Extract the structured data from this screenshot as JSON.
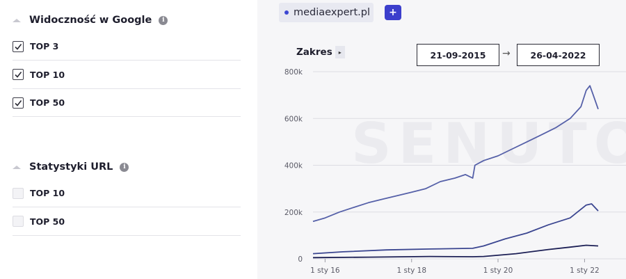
{
  "sidebar": {
    "google": {
      "title": "Widoczność w Google",
      "info": "i",
      "items": [
        {
          "label": "TOP 3",
          "checked": true
        },
        {
          "label": "TOP 10",
          "checked": true
        },
        {
          "label": "TOP 50",
          "checked": true
        }
      ]
    },
    "url": {
      "title": "Statystyki URL",
      "info": "i",
      "items": [
        {
          "label": "TOP 10",
          "checked": false
        },
        {
          "label": "TOP 50",
          "checked": false
        }
      ]
    }
  },
  "toolbar": {
    "domain": "mediaexpert.pl",
    "add_label": "+",
    "range_label": "Zakres",
    "range_caret": "▸",
    "date_from": "21-09-2015",
    "arrow": "→",
    "date_to": "26-04-2022",
    "watermark": "SENUTO"
  },
  "colors": {
    "accent": "#3c3fcc",
    "series_top50": "#5560a8",
    "series_top10": "#3a4590",
    "series_top3": "#1c1f55"
  },
  "chart_data": {
    "type": "line",
    "title": "",
    "xlabel": "",
    "ylabel": "",
    "ylim": [
      0,
      800000
    ],
    "xlim": [
      "2015-09-21",
      "2022-04-26"
    ],
    "yticks": [
      "0",
      "200k",
      "400k",
      "600k",
      "800k"
    ],
    "xticks": [
      {
        "label": "1 sty 16",
        "date": "2016-01-01"
      },
      {
        "label": "1 sty 18",
        "date": "2018-01-01"
      },
      {
        "label": "1 sty 20",
        "date": "2020-01-01"
      },
      {
        "label": "1 sty 22",
        "date": "2022-01-01"
      }
    ],
    "grid": true,
    "series": [
      {
        "key": "top50",
        "dates": [
          "2015-09-21",
          "2016-01-01",
          "2016-05-01",
          "2016-09-01",
          "2017-01-01",
          "2017-05-01",
          "2017-09-01",
          "2018-01-01",
          "2018-05-01",
          "2018-09-01",
          "2019-01-01",
          "2019-04-01",
          "2019-06-01",
          "2019-06-20",
          "2019-09-01",
          "2020-01-01",
          "2020-05-01",
          "2020-09-01",
          "2021-01-01",
          "2021-05-01",
          "2021-09-01",
          "2021-12-01",
          "2022-01-15",
          "2022-02-15",
          "2022-03-15",
          "2022-04-26"
        ],
        "values": [
          160000,
          175000,
          200000,
          220000,
          240000,
          255000,
          270000,
          285000,
          300000,
          330000,
          345000,
          360000,
          345000,
          400000,
          420000,
          440000,
          470000,
          500000,
          530000,
          560000,
          600000,
          650000,
          720000,
          740000,
          700000,
          640000
        ]
      },
      {
        "key": "top10",
        "dates": [
          "2015-09-21",
          "2016-06-01",
          "2017-06-01",
          "2018-06-01",
          "2019-06-01",
          "2019-09-01",
          "2020-03-01",
          "2020-09-01",
          "2021-03-01",
          "2021-09-01",
          "2022-01-15",
          "2022-03-01",
          "2022-04-26"
        ],
        "values": [
          22000,
          30000,
          38000,
          42000,
          45000,
          55000,
          85000,
          110000,
          145000,
          175000,
          230000,
          235000,
          205000
        ]
      },
      {
        "key": "top3",
        "dates": [
          "2015-09-21",
          "2017-01-01",
          "2018-06-01",
          "2019-06-01",
          "2019-09-01",
          "2020-06-01",
          "2021-03-01",
          "2021-09-01",
          "2022-01-15",
          "2022-04-26"
        ],
        "values": [
          5000,
          7000,
          10000,
          9000,
          10000,
          22000,
          40000,
          50000,
          58000,
          55000
        ]
      }
    ]
  }
}
